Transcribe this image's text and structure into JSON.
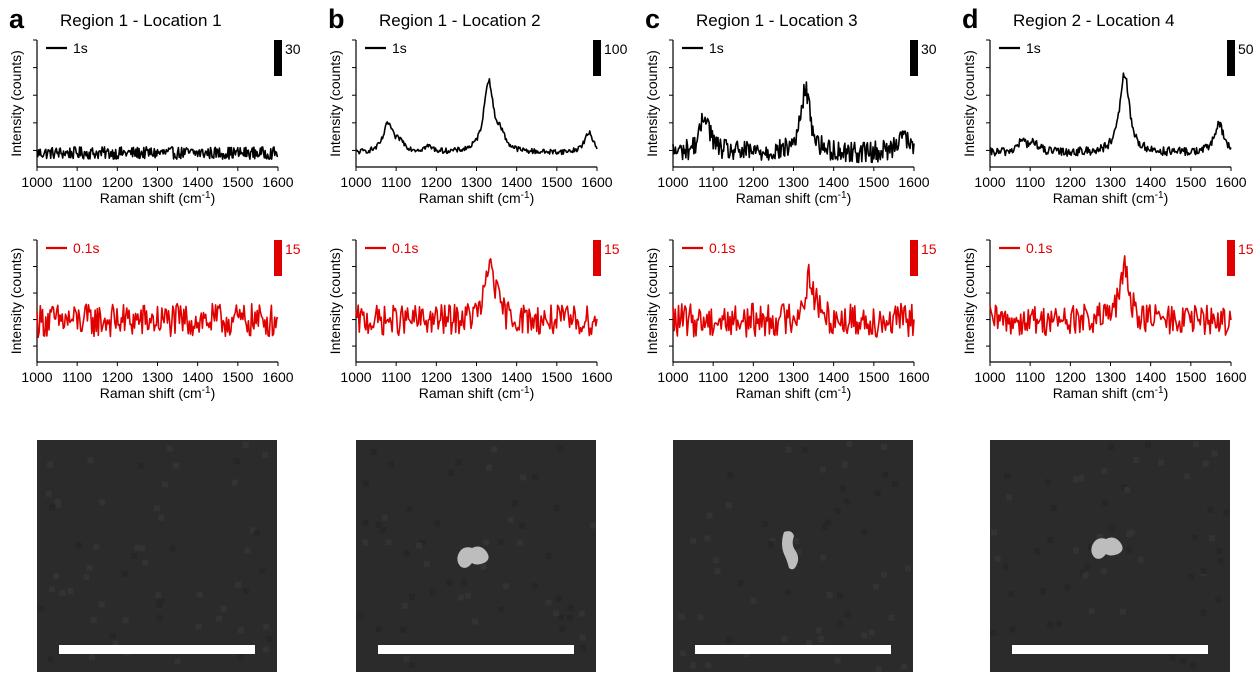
{
  "colors": {
    "black_series": "#000000",
    "red_series": "#e00000",
    "sem_background": "#2b2b2b",
    "particle": "#bdbdbd",
    "scale_bar": "#ffffff"
  },
  "panels": [
    {
      "letter": "a",
      "title": "Region 1 - Location 1",
      "top_legend": "1s",
      "top_scale": "30",
      "bottom_legend": "0.1s",
      "bottom_scale": "15",
      "particle": "none"
    },
    {
      "letter": "b",
      "title": "Region 1 - Location 2",
      "top_legend": "1s",
      "top_scale": "100",
      "bottom_legend": "0.1s",
      "bottom_scale": "15",
      "particle": "blob"
    },
    {
      "letter": "c",
      "title": "Region 1 - Location 3",
      "top_legend": "1s",
      "top_scale": "30",
      "bottom_legend": "0.1s",
      "bottom_scale": "15",
      "particle": "rod"
    },
    {
      "letter": "d",
      "title": "Region 2 - Location 4",
      "top_legend": "1s",
      "top_scale": "50",
      "bottom_legend": "0.1s",
      "bottom_scale": "15",
      "particle": "blob"
    }
  ],
  "axis": {
    "xlabel": "Raman shift (cm",
    "xlabel_sup": "-1",
    "xlabel_end": ")",
    "ylabel": "Intensity (counts)",
    "xticks": [
      "1000",
      "1100",
      "1200",
      "1300",
      "1400",
      "1500",
      "1600"
    ]
  },
  "chart_data": [
    {
      "type": "line",
      "title": "Region 1 - Location 1",
      "integration": "1s",
      "xlim": [
        1000,
        1600
      ],
      "series": [
        {
          "name": "1s",
          "peaks": [],
          "noise": 0.35
        }
      ]
    },
    {
      "type": "line",
      "title": "Region 1 - Location 1",
      "integration": "0.1s",
      "xlim": [
        1000,
        1600
      ],
      "series": [
        {
          "name": "0.1s",
          "peaks": [],
          "noise": 1.0
        }
      ]
    },
    {
      "type": "line",
      "title": "Region 1 - Location 2",
      "integration": "1s",
      "xlim": [
        1000,
        1600
      ],
      "series": [
        {
          "name": "1s",
          "peaks": [
            [
              1080,
              1.6
            ],
            [
              1110,
              0.5
            ],
            [
              1180,
              0.3
            ],
            [
              1330,
              4.0
            ],
            [
              1360,
              0.8
            ],
            [
              1580,
              1.1
            ]
          ],
          "noise": 0.15
        }
      ]
    },
    {
      "type": "line",
      "title": "Region 1 - Location 2",
      "integration": "0.1s",
      "xlim": [
        1000,
        1600
      ],
      "series": [
        {
          "name": "0.1s",
          "peaks": [
            [
              1335,
              3.5
            ]
          ],
          "noise": 0.9
        }
      ]
    },
    {
      "type": "line",
      "title": "Region 1 - Location 3",
      "integration": "1s",
      "xlim": [
        1000,
        1600
      ],
      "series": [
        {
          "name": "1s",
          "peaks": [
            [
              1080,
              2.2
            ],
            [
              1330,
              3.6
            ],
            [
              1570,
              1.2
            ]
          ],
          "noise": 0.6
        }
      ]
    },
    {
      "type": "line",
      "title": "Region 1 - Location 3",
      "integration": "0.1s",
      "xlim": [
        1000,
        1600
      ],
      "series": [
        {
          "name": "0.1s",
          "peaks": [
            [
              1340,
              2.6
            ]
          ],
          "noise": 1.0
        }
      ]
    },
    {
      "type": "line",
      "title": "Region 2 - Location 4",
      "integration": "1s",
      "xlim": [
        1000,
        1600
      ],
      "series": [
        {
          "name": "1s",
          "peaks": [
            [
              1080,
              0.6
            ],
            [
              1110,
              0.5
            ],
            [
              1335,
              4.5
            ],
            [
              1570,
              1.6
            ]
          ],
          "noise": 0.25
        }
      ]
    },
    {
      "type": "line",
      "title": "Region 2 - Location 4",
      "integration": "0.1s",
      "xlim": [
        1000,
        1600
      ],
      "series": [
        {
          "name": "0.1s",
          "peaks": [
            [
              1335,
              3.0
            ]
          ],
          "noise": 0.9
        }
      ]
    }
  ]
}
